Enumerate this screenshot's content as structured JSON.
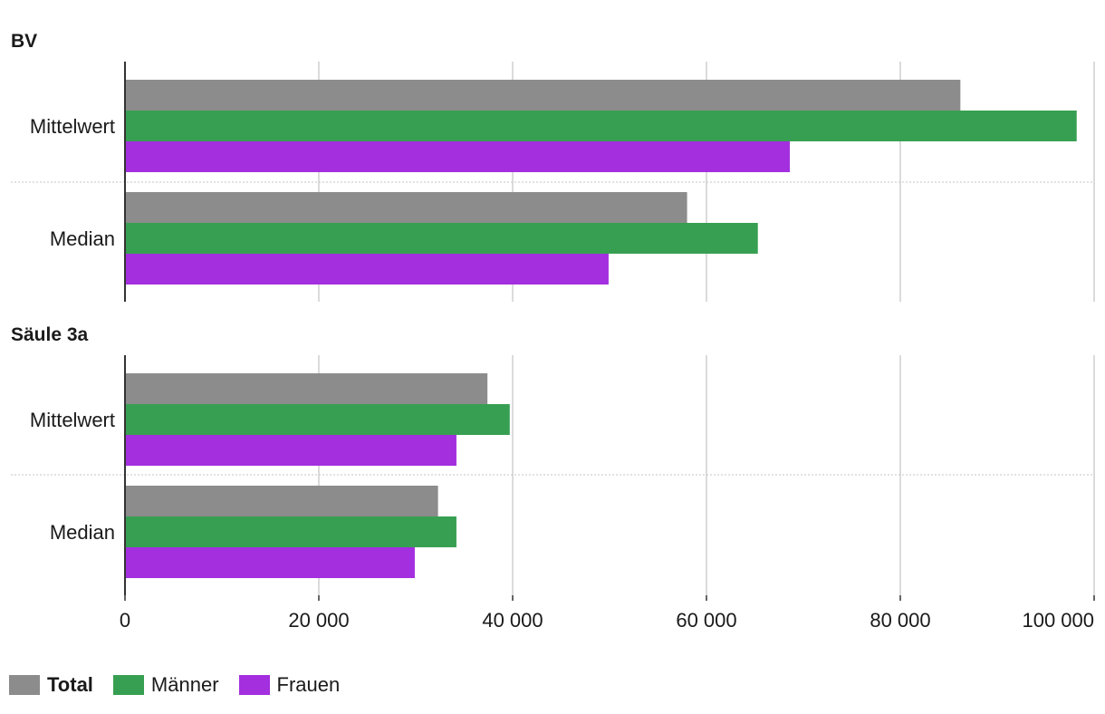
{
  "chart_data": [
    {
      "type": "bar",
      "orientation": "horizontal",
      "title": "BV",
      "categories": [
        "Mittelwert",
        "Median"
      ],
      "series": [
        {
          "name": "Total",
          "values": [
            86200,
            58000
          ]
        },
        {
          "name": "Männer",
          "values": [
            98200,
            65300
          ]
        },
        {
          "name": "Frauen",
          "values": [
            68600,
            49900
          ]
        }
      ],
      "xlim": [
        0,
        100000
      ],
      "grid": true
    },
    {
      "type": "bar",
      "orientation": "horizontal",
      "title": "Säule 3a",
      "categories": [
        "Mittelwert",
        "Median"
      ],
      "series": [
        {
          "name": "Total",
          "values": [
            37400,
            32300
          ]
        },
        {
          "name": "Männer",
          "values": [
            39700,
            34200
          ]
        },
        {
          "name": "Frauen",
          "values": [
            34200,
            29900
          ]
        }
      ],
      "xlim": [
        0,
        100000
      ],
      "grid": true
    }
  ],
  "x_axis": {
    "ticks": [
      0,
      20000,
      40000,
      60000,
      80000,
      100000
    ],
    "tick_labels": [
      "0",
      "20 000",
      "40 000",
      "60 000",
      "80 000",
      "100 000"
    ]
  },
  "legend": {
    "position": "bottom-left",
    "items": [
      {
        "label": "Total",
        "color": "#8c8c8c"
      },
      {
        "label": "Männer",
        "color": "#379f51"
      },
      {
        "label": "Frauen",
        "color": "#a32fdf"
      }
    ]
  },
  "colors": {
    "Total": "#8c8c8c",
    "Männer": "#379f51",
    "Frauen": "#a32fdf"
  }
}
